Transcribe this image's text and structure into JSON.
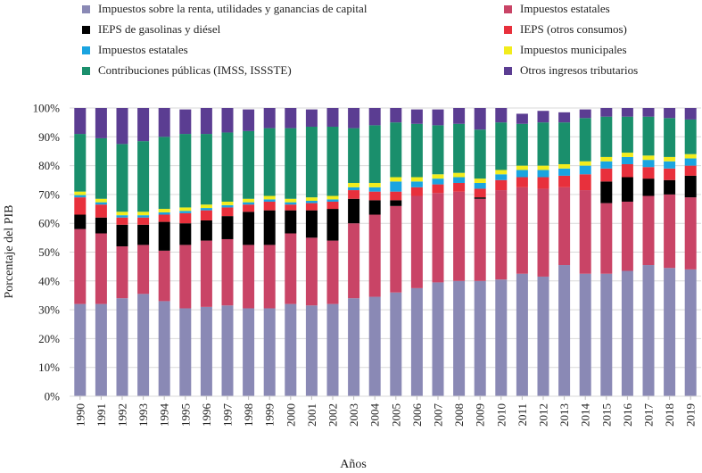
{
  "chart_data": {
    "type": "bar",
    "stacked": true,
    "ylabel": "Porcentaje del PIB",
    "xlabel": "Años",
    "ylim": [
      0,
      100
    ],
    "yticks": [
      "0%",
      "10%",
      "20%",
      "30%",
      "40%",
      "50%",
      "60%",
      "70%",
      "80%",
      "90%",
      "100%"
    ],
    "categories": [
      "1990",
      "1991",
      "1992",
      "1993",
      "1994",
      "1995",
      "1996",
      "1997",
      "1998",
      "1999",
      "2000",
      "2001",
      "2002",
      "2003",
      "2004",
      "2005",
      "2006",
      "2007",
      "2008",
      "2009",
      "2010",
      "2011",
      "2012",
      "2013",
      "2014",
      "2015",
      "2016",
      "2017",
      "2018",
      "2019"
    ],
    "series": [
      {
        "name": "Impuestos sobre la renta, utilidades y ganancias de capital",
        "color": "#8a89b5",
        "values": [
          32,
          32,
          34,
          35.5,
          33,
          30.5,
          31,
          31.5,
          30.5,
          30.5,
          32,
          31.5,
          32,
          34,
          34.5,
          36,
          37.5,
          39.5,
          40,
          40,
          40.5,
          42.5,
          41.5,
          45.5,
          42.5,
          42.5,
          43.5,
          45.5,
          44.5,
          44
        ]
      },
      {
        "name": "Impuestos estatales",
        "color": "#c94466",
        "values": [
          26,
          24.5,
          18,
          17,
          17.5,
          22,
          23,
          23,
          22,
          22,
          24.5,
          23.5,
          22,
          26,
          28.5,
          30,
          32,
          31,
          31,
          28.5,
          31,
          30,
          30.5,
          27,
          29,
          24.5,
          24,
          24,
          25.5,
          25
        ]
      },
      {
        "name": "IEPS de gasolinas y diésel",
        "color": "#000000",
        "values": [
          5,
          5.5,
          7.5,
          7,
          10,
          7.5,
          7,
          8,
          11.5,
          12,
          8,
          9.5,
          11,
          8.5,
          5,
          2,
          0,
          0,
          0,
          0.5,
          0,
          0,
          0,
          0,
          0,
          7.5,
          8.5,
          6,
          5,
          7.5
        ]
      },
      {
        "name": "IEPS (otros consumos)",
        "color": "#e8303c",
        "values": [
          6,
          4.5,
          2.5,
          2.5,
          2.5,
          3.5,
          3.5,
          3,
          2.5,
          3,
          2,
          2.5,
          2.5,
          3,
          3,
          3,
          3,
          3,
          3,
          3,
          3.5,
          3.5,
          4,
          4,
          5.5,
          4.5,
          4.5,
          4,
          4,
          3.5
        ]
      },
      {
        "name": "Impuestos estatales",
        "color": "#1aa4e0",
        "values": [
          0.8,
          0.8,
          0.8,
          0.8,
          0.8,
          0.8,
          0.8,
          0.8,
          0.8,
          0.8,
          0.8,
          0.8,
          0.8,
          1,
          1.5,
          3.5,
          2,
          2,
          2,
          2,
          2,
          2.5,
          2.5,
          2.5,
          3,
          2.5,
          2.5,
          2.5,
          2.5,
          2.5
        ]
      },
      {
        "name": "Impuestos municipales",
        "color": "#f2ec1c",
        "values": [
          1.2,
          1.2,
          1.2,
          1.2,
          1.2,
          1.2,
          1.2,
          1.2,
          1.2,
          1.2,
          1.2,
          1.2,
          1.2,
          1.5,
          1.5,
          1.5,
          1.5,
          1.5,
          1.5,
          1.5,
          1.5,
          1.5,
          1.5,
          1.5,
          1.5,
          1.5,
          1.5,
          1.5,
          1.5,
          1.5
        ]
      },
      {
        "name": "Contribuciones públicas (IMSS, ISSSTE)",
        "color": "#1a8f6c",
        "values": [
          20,
          21,
          23.5,
          24.5,
          25,
          25.5,
          24.5,
          24,
          23.5,
          23.5,
          24.5,
          24.5,
          24,
          19,
          20,
          19,
          18.5,
          17,
          17,
          17,
          16.5,
          14.5,
          15,
          14.5,
          15,
          14,
          12.5,
          13.5,
          13.5,
          12
        ]
      },
      {
        "name": "Otros ingresos tributarios",
        "color": "#5b3d92",
        "values": [
          9,
          10.5,
          12.5,
          11.5,
          10,
          8.5,
          9,
          8.5,
          7.5,
          7,
          7,
          6,
          6.5,
          7,
          6,
          5,
          5,
          5.5,
          5.5,
          7.5,
          5,
          3.5,
          4,
          3.5,
          3,
          3,
          3,
          3,
          3.5,
          4
        ]
      }
    ]
  },
  "legend": [
    {
      "label": "Impuestos sobre la renta, utilidades y ganancias de capital",
      "color": "#8a89b5"
    },
    {
      "label": "Impuestos estatales",
      "color": "#c94466"
    },
    {
      "label": "IEPS de gasolinas y diésel",
      "color": "#000000"
    },
    {
      "label": "IEPS (otros consumos)",
      "color": "#e8303c"
    },
    {
      "label": "Impuestos estatales",
      "color": "#1aa4e0"
    },
    {
      "label": "Impuestos municipales",
      "color": "#f2ec1c"
    },
    {
      "label": "Contribuciones públicas (IMSS, ISSSTE)",
      "color": "#1a8f6c"
    },
    {
      "label": "Otros ingresos tributarios",
      "color": "#5b3d92"
    }
  ]
}
